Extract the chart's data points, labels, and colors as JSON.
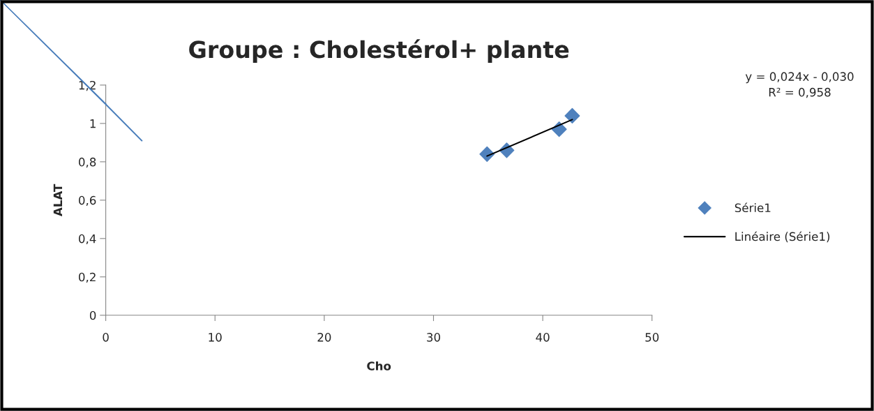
{
  "chart_data": {
    "type": "scatter",
    "title": "Groupe : Cholestérol+ plante",
    "xlabel": "Cho",
    "ylabel": "ALAT",
    "series": [
      {
        "name": "Série1",
        "type": "scatter",
        "color": "#4f81bd",
        "marker": "diamond",
        "x": [
          34.9,
          36.7,
          41.5,
          42.7
        ],
        "values": [
          0.84,
          0.86,
          0.97,
          1.04
        ]
      },
      {
        "name": "Linéaire (Série1)",
        "type": "line",
        "color": "#000000",
        "marker": "none",
        "line_style": "solid",
        "x": [
          34.9,
          42.7
        ],
        "values": [
          0.83,
          1.02
        ]
      },
      {
        "type": "line",
        "color": "#4a7ebb",
        "marker": "none",
        "line_style": "solid",
        "x": [
          0,
          3.3
        ],
        "values": [
          1.1,
          0.91
        ]
      }
    ],
    "annotations": [
      "y = 0,024x - 0,030\nR² = 0,958"
    ],
    "xlim": [
      0,
      50
    ],
    "xticks": [
      0,
      10,
      20,
      30,
      40,
      50
    ],
    "ylim": [
      0,
      1.2
    ],
    "yticks": [
      {
        "value": 0,
        "label": "0"
      },
      {
        "value": 0.2,
        "label": "0,2"
      },
      {
        "value": 0.4,
        "label": "0,4"
      },
      {
        "value": 0.6,
        "label": "0,6"
      },
      {
        "value": 0.8,
        "label": "0,8"
      },
      {
        "value": 1,
        "label": "1"
      },
      {
        "value": 1.2,
        "label": "1,2"
      }
    ],
    "grid": false,
    "legend": "right"
  }
}
